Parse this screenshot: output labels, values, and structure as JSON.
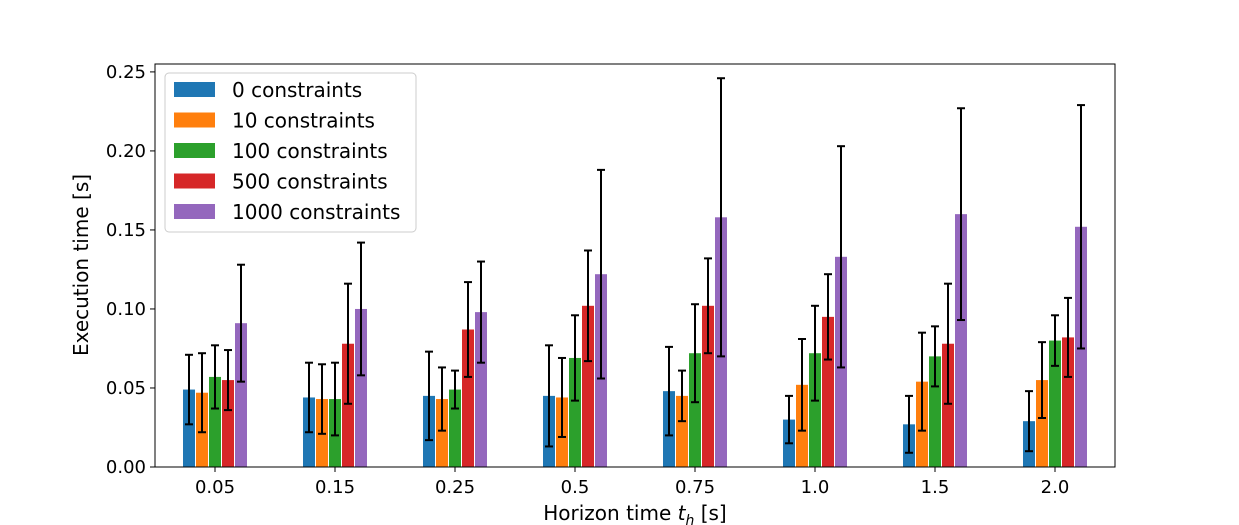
{
  "chart_data": {
    "type": "bar",
    "title": "",
    "xlabel": "Horizon time",
    "xlabel_symbol": "t",
    "xlabel_subscript": "h",
    "xlabel_unit": "[s]",
    "ylabel": "Execution time [s]",
    "ylim": [
      0,
      0.255
    ],
    "yticks": [
      "0.00",
      "0.05",
      "0.10",
      "0.15",
      "0.20",
      "0.25"
    ],
    "categories": [
      "0.05",
      "0.15",
      "0.25",
      "0.5",
      "0.75",
      "1.0",
      "1.5",
      "2.0"
    ],
    "legend_position": "top-left",
    "series": [
      {
        "name": "0 constraints",
        "color": "#1f77b4",
        "values": [
          0.049,
          0.044,
          0.045,
          0.045,
          0.048,
          0.03,
          0.027,
          0.029
        ],
        "errors": [
          0.022,
          0.022,
          0.028,
          0.032,
          0.028,
          0.015,
          0.018,
          0.019
        ]
      },
      {
        "name": "10 constraints",
        "color": "#ff7f0e",
        "values": [
          0.047,
          0.043,
          0.043,
          0.044,
          0.045,
          0.052,
          0.054,
          0.055
        ],
        "errors": [
          0.025,
          0.022,
          0.02,
          0.025,
          0.016,
          0.029,
          0.031,
          0.024
        ]
      },
      {
        "name": "100 constraints",
        "color": "#2ca02c",
        "values": [
          0.057,
          0.043,
          0.049,
          0.069,
          0.072,
          0.072,
          0.07,
          0.08
        ],
        "errors": [
          0.02,
          0.023,
          0.012,
          0.027,
          0.031,
          0.03,
          0.019,
          0.016
        ]
      },
      {
        "name": "500 constraints",
        "color": "#d62728",
        "values": [
          0.055,
          0.078,
          0.087,
          0.102,
          0.102,
          0.095,
          0.078,
          0.082
        ],
        "errors": [
          0.019,
          0.038,
          0.03,
          0.035,
          0.03,
          0.027,
          0.038,
          0.025
        ]
      },
      {
        "name": "1000 constraints",
        "color": "#9467bd",
        "values": [
          0.091,
          0.1,
          0.098,
          0.122,
          0.158,
          0.133,
          0.16,
          0.152
        ],
        "errors": [
          0.037,
          0.042,
          0.032,
          0.066,
          0.088,
          0.07,
          0.067,
          0.077
        ]
      }
    ]
  }
}
